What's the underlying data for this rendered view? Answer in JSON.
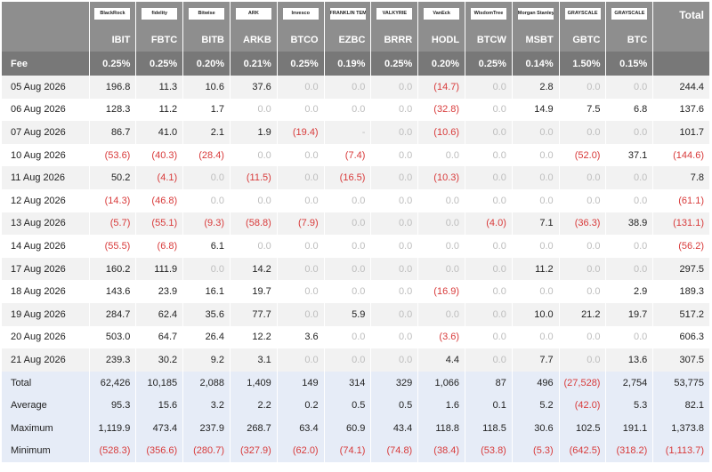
{
  "header": {
    "logos": [
      "BlackRock",
      "fidelity",
      "Bitwise",
      "ARK",
      "Invesco",
      "FRANKLIN TEMPLETON",
      "VALKYRIE",
      "VanEck",
      "WisdomTree",
      "Morgan Stanley",
      "GRAYSCALE",
      "GRAYSCALE"
    ],
    "tickers": [
      "IBIT",
      "FBTC",
      "BITB",
      "ARKB",
      "BTCO",
      "EZBC",
      "BRRR",
      "HODL",
      "BTCW",
      "MSBT",
      "GBTC",
      "BTC"
    ],
    "total_label": "Total"
  },
  "fee": {
    "label": "Fee",
    "values": [
      "0.25%",
      "0.25%",
      "0.20%",
      "0.21%",
      "0.25%",
      "0.19%",
      "0.25%",
      "0.20%",
      "0.25%",
      "0.14%",
      "1.50%",
      "0.15%"
    ]
  },
  "rows": [
    {
      "date": "05 Aug 2026",
      "values": [
        "196.8",
        "11.3",
        "10.6",
        "37.6",
        "0.0",
        "0.0",
        "0.0",
        "(14.7)",
        "0.0",
        "2.8",
        "0.0",
        "0.0",
        "244.4"
      ]
    },
    {
      "date": "06 Aug 2026",
      "values": [
        "128.3",
        "11.2",
        "1.7",
        "0.0",
        "0.0",
        "0.0",
        "0.0",
        "(32.8)",
        "0.0",
        "14.9",
        "7.5",
        "6.8",
        "137.6"
      ]
    },
    {
      "date": "07 Aug 2026",
      "values": [
        "86.7",
        "41.0",
        "2.1",
        "1.9",
        "(19.4)",
        "-",
        "0.0",
        "(10.6)",
        "0.0",
        "0.0",
        "0.0",
        "0.0",
        "101.7"
      ]
    },
    {
      "date": "10 Aug 2026",
      "values": [
        "(53.6)",
        "(40.3)",
        "(28.4)",
        "0.0",
        "0.0",
        "(7.4)",
        "0.0",
        "0.0",
        "0.0",
        "0.0",
        "(52.0)",
        "37.1",
        "(144.6)"
      ]
    },
    {
      "date": "11 Aug 2026",
      "values": [
        "50.2",
        "(4.1)",
        "0.0",
        "(11.5)",
        "0.0",
        "(16.5)",
        "0.0",
        "(10.3)",
        "0.0",
        "0.0",
        "0.0",
        "0.0",
        "7.8"
      ]
    },
    {
      "date": "12 Aug 2026",
      "values": [
        "(14.3)",
        "(46.8)",
        "0.0",
        "0.0",
        "0.0",
        "0.0",
        "0.0",
        "0.0",
        "0.0",
        "0.0",
        "0.0",
        "0.0",
        "(61.1)"
      ]
    },
    {
      "date": "13 Aug 2026",
      "values": [
        "(5.7)",
        "(55.1)",
        "(9.3)",
        "(58.8)",
        "(7.9)",
        "0.0",
        "0.0",
        "0.0",
        "(4.0)",
        "7.1",
        "(36.3)",
        "38.9",
        "(131.1)"
      ]
    },
    {
      "date": "14 Aug 2026",
      "values": [
        "(55.5)",
        "(6.8)",
        "6.1",
        "0.0",
        "0.0",
        "0.0",
        "0.0",
        "0.0",
        "0.0",
        "0.0",
        "0.0",
        "0.0",
        "(56.2)"
      ]
    },
    {
      "date": "17 Aug 2026",
      "values": [
        "160.2",
        "111.9",
        "0.0",
        "14.2",
        "0.0",
        "0.0",
        "0.0",
        "0.0",
        "0.0",
        "11.2",
        "0.0",
        "0.0",
        "297.5"
      ]
    },
    {
      "date": "18 Aug 2026",
      "values": [
        "143.6",
        "23.9",
        "16.1",
        "19.7",
        "0.0",
        "0.0",
        "0.0",
        "(16.9)",
        "0.0",
        "0.0",
        "0.0",
        "2.9",
        "189.3"
      ]
    },
    {
      "date": "19 Aug 2026",
      "values": [
        "284.7",
        "62.4",
        "35.6",
        "77.7",
        "0.0",
        "5.9",
        "0.0",
        "0.0",
        "0.0",
        "10.0",
        "21.2",
        "19.7",
        "517.2"
      ]
    },
    {
      "date": "20 Aug 2026",
      "values": [
        "503.0",
        "64.7",
        "26.4",
        "12.2",
        "3.6",
        "0.0",
        "0.0",
        "(3.6)",
        "0.0",
        "0.0",
        "0.0",
        "0.0",
        "606.3"
      ]
    },
    {
      "date": "21 Aug 2026",
      "values": [
        "239.3",
        "30.2",
        "9.2",
        "3.1",
        "0.0",
        "0.0",
        "0.0",
        "4.4",
        "0.0",
        "7.7",
        "0.0",
        "13.6",
        "307.5"
      ]
    }
  ],
  "summary": [
    {
      "label": "Total",
      "values": [
        "62,426",
        "10,185",
        "2,088",
        "1,409",
        "149",
        "314",
        "329",
        "1,066",
        "87",
        "496",
        "(27,528)",
        "2,754",
        "53,775"
      ]
    },
    {
      "label": "Average",
      "values": [
        "95.3",
        "15.6",
        "3.2",
        "2.2",
        "0.2",
        "0.5",
        "0.5",
        "1.6",
        "0.1",
        "5.2",
        "(42.0)",
        "5.3",
        "82.1"
      ]
    },
    {
      "label": "Maximum",
      "values": [
        "1,119.9",
        "473.4",
        "237.9",
        "268.7",
        "63.4",
        "60.9",
        "43.4",
        "118.8",
        "118.5",
        "30.6",
        "102.5",
        "191.1",
        "1,373.8"
      ]
    },
    {
      "label": "Minimum",
      "values": [
        "(528.3)",
        "(356.6)",
        "(280.7)",
        "(327.9)",
        "(62.0)",
        "(74.1)",
        "(74.8)",
        "(38.4)",
        "(53.8)",
        "(5.3)",
        "(642.5)",
        "(318.2)",
        "(1,113.7)"
      ]
    }
  ]
}
